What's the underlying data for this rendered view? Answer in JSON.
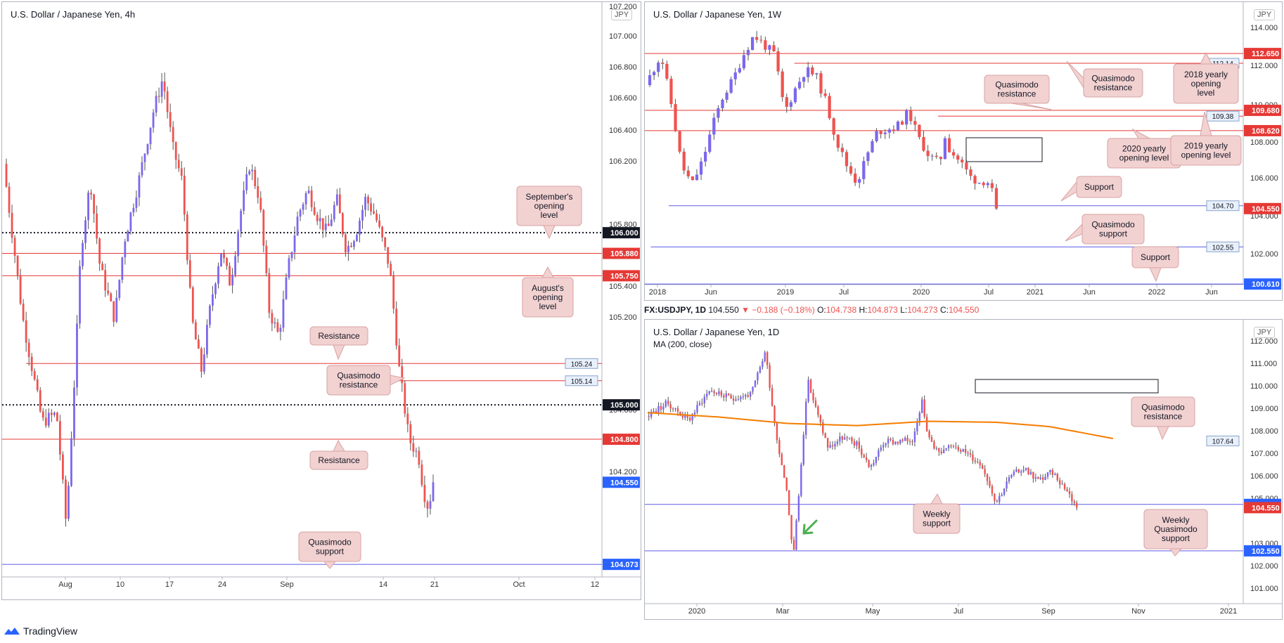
{
  "brand": {
    "name": "TradingView"
  },
  "currency_badge": "JPY",
  "symbol_header": {
    "symbol": "FX:USDJPY, 1D",
    "last": "104.550",
    "change": "▼ −0.188 (−0.18%)",
    "o_label": "O:",
    "o": "104.738",
    "h_label": "H:",
    "h": "104.873",
    "l_label": "L:",
    "l": "104.273",
    "c_label": "C:",
    "c": "104.550"
  },
  "colors": {
    "bull": "#7b68ee",
    "bear": "#ef5350",
    "red_level": "#e53935",
    "blue_level": "#5c5ce6",
    "ma": "#f57c00",
    "callout_bg": "#f2d1d1",
    "callout_border": "#d9a3a3"
  },
  "chart_data": [
    {
      "id": "h4",
      "type": "candlestick",
      "title": "U.S. Dollar / Japanese Yen, 4h",
      "x_ticks": [
        "Aug",
        "10",
        "17",
        "24",
        "Sep",
        "14",
        "21",
        "Oct",
        "12"
      ],
      "y_ticks": [
        "107.200",
        "107.000",
        "106.800",
        "106.600",
        "106.400",
        "106.200",
        "105.800",
        "105.600",
        "105.400",
        "105.200",
        "104.600",
        "104.400",
        "104.200"
      ],
      "ylim": [
        104.0,
        107.25
      ],
      "price_path": [
        [
          0,
          106.4
        ],
        [
          4,
          105.5
        ],
        [
          8,
          104.9
        ],
        [
          11,
          104.95
        ],
        [
          13,
          104.3
        ],
        [
          15,
          105.3
        ],
        [
          16,
          105.9
        ],
        [
          18,
          106.3
        ],
        [
          20,
          105.8
        ],
        [
          23,
          105.5
        ],
        [
          25,
          105.95
        ],
        [
          28,
          106.3
        ],
        [
          31,
          106.7
        ],
        [
          33,
          106.9
        ],
        [
          35,
          106.5
        ],
        [
          37,
          106.3
        ],
        [
          39,
          105.5
        ],
        [
          41,
          105.2
        ],
        [
          43,
          105.6
        ],
        [
          45,
          105.9
        ],
        [
          47,
          105.7
        ],
        [
          49,
          106.1
        ],
        [
          51,
          106.4
        ],
        [
          53,
          106.2
        ],
        [
          55,
          105.55
        ],
        [
          57,
          105.4
        ],
        [
          59,
          105.8
        ],
        [
          61,
          106.1
        ],
        [
          63,
          106.25
        ],
        [
          65,
          106.1
        ],
        [
          67,
          106.0
        ],
        [
          69,
          106.2
        ],
        [
          71,
          105.9
        ],
        [
          73,
          106.0
        ],
        [
          75,
          106.2
        ],
        [
          77,
          106.1
        ],
        [
          80,
          105.8
        ],
        [
          82,
          105.2
        ],
        [
          84,
          104.8
        ],
        [
          86,
          104.7
        ],
        [
          87,
          104.5
        ],
        [
          88,
          104.4
        ],
        [
          89,
          104.55
        ]
      ],
      "last_price": 104.55,
      "levels": [
        {
          "value": 106.0,
          "label": "106.000",
          "style": "dotted",
          "color": "#131722",
          "tag_bg": "#131722"
        },
        {
          "value": 105.88,
          "label": "105.880",
          "style": "solid",
          "color": "#e53935",
          "tag_bg": "#e53935"
        },
        {
          "value": 105.75,
          "label": "105.750",
          "style": "solid",
          "color": "#e53935",
          "tag_bg": "#e53935"
        },
        {
          "value": 105.24,
          "label": "105.24",
          "style": "solid",
          "color": "#e53935",
          "tag_bg": "#e8f0fb",
          "from": 0.04,
          "small": true
        },
        {
          "value": 105.14,
          "label": "105.14",
          "style": "solid",
          "color": "#e53935",
          "tag_bg": "#e8f0fb",
          "from": 0.66,
          "small": true
        },
        {
          "value": 105.0,
          "label": "105.000",
          "style": "dotted",
          "color": "#131722",
          "tag_bg": "#131722"
        },
        {
          "value": 104.8,
          "label": "104.800",
          "style": "solid",
          "color": "#e53935",
          "tag_bg": "#e53935"
        },
        {
          "value": 104.55,
          "label": "104.550",
          "style": "none",
          "color": "#2962ff",
          "tag_bg": "#2962ff"
        },
        {
          "value": 104.073,
          "label": "104.073",
          "style": "solid",
          "color": "#5c5ce6",
          "tag_bg": "#2962ff"
        }
      ],
      "annotations": [
        "September's opening level",
        "August's opening level",
        "Resistance",
        "Quasimodo resistance",
        "Resistance",
        "Quasimodo support"
      ]
    },
    {
      "id": "w1",
      "type": "candlestick",
      "title": "U.S. Dollar / Japanese Yen, 1W",
      "x_ticks": [
        "2018",
        "Jun",
        "2019",
        "Jul",
        "2020",
        "Jul",
        "2021",
        "Jun",
        "2022",
        "Jun"
      ],
      "y_ticks": [
        "114.000",
        "112.000",
        "110.000",
        "108.000",
        "106.000",
        "104.000",
        "102.000"
      ],
      "ylim": [
        100.8,
        114.6
      ],
      "price_path": [
        [
          0,
          111.0
        ],
        [
          3,
          112.6
        ],
        [
          5,
          110.0
        ],
        [
          7,
          106.8
        ],
        [
          9,
          105.8
        ],
        [
          11,
          107.0
        ],
        [
          13,
          108.9
        ],
        [
          15,
          110.4
        ],
        [
          17,
          111.3
        ],
        [
          19,
          112.6
        ],
        [
          21,
          113.6
        ],
        [
          23,
          113.1
        ],
        [
          25,
          112.6
        ],
        [
          27,
          109.6
        ],
        [
          29,
          110.8
        ],
        [
          31,
          111.8
        ],
        [
          33,
          111.5
        ],
        [
          35,
          110.1
        ],
        [
          37,
          108.1
        ],
        [
          39,
          106.8
        ],
        [
          41,
          105.9
        ],
        [
          43,
          107.4
        ],
        [
          45,
          108.6
        ],
        [
          47,
          108.7
        ],
        [
          49,
          108.9
        ],
        [
          51,
          109.6
        ],
        [
          53,
          108.2
        ],
        [
          55,
          107.3
        ],
        [
          57,
          106.9
        ],
        [
          58,
          108.4
        ],
        [
          59,
          107.6
        ],
        [
          61,
          107.0
        ],
        [
          63,
          106.2
        ],
        [
          65,
          105.9
        ],
        [
          66,
          106.1
        ],
        [
          67,
          105.6
        ],
        [
          68,
          104.6
        ]
      ],
      "last_price": 104.55,
      "levels": [
        {
          "value": 112.65,
          "label": "112.650",
          "style": "solid",
          "color": "#e53935",
          "tag_bg": "#e53935"
        },
        {
          "value": 112.14,
          "label": "112.14",
          "style": "solid",
          "color": "#e53935",
          "tag_bg": "#e8f0fb",
          "from": 0.25,
          "small": true
        },
        {
          "value": 109.68,
          "label": "109.680",
          "style": "solid",
          "color": "#e53935",
          "tag_bg": "#e53935"
        },
        {
          "value": 109.38,
          "label": "109.38",
          "style": "solid",
          "color": "#e53935",
          "tag_bg": "#e8f0fb",
          "from": 0.49,
          "to": 0.0,
          "small": true
        },
        {
          "value": 108.62,
          "label": "108.620",
          "style": "solid",
          "color": "#e53935",
          "tag_bg": "#e53935"
        },
        {
          "value": 104.7,
          "label": "104.70",
          "style": "solid",
          "color": "#5c5ce6",
          "tag_bg": "#e8f0fb",
          "from": 0.04,
          "small": true
        },
        {
          "value": 104.55,
          "label": "104.550",
          "style": "none",
          "color": "#e53935",
          "tag_bg": "#e53935"
        },
        {
          "value": 102.55,
          "label": "102.55",
          "style": "solid",
          "color": "#5c5ce6",
          "tag_bg": "#e8f0fb",
          "from": 0.01,
          "small": true
        },
        {
          "value": 100.61,
          "label": "100.610",
          "style": "solid",
          "color": "#5c5ce6",
          "tag_bg": "#2962ff"
        }
      ],
      "annotations": [
        "Quasimodo resistance",
        "2018 yearly opening level",
        "Quasimodo resistance",
        "2020 yearly opening level",
        "2019 yearly opening level",
        "Support",
        "Quasimodo support",
        "Support"
      ]
    },
    {
      "id": "d1",
      "type": "candlestick",
      "title": "U.S. Dollar / Japanese Yen, 1D",
      "indicator": "MA (200, close)",
      "x_ticks": [
        "2020",
        "Mar",
        "May",
        "Jul",
        "Sep",
        "Nov",
        "2021"
      ],
      "y_ticks": [
        "112.000",
        "111.000",
        "110.000",
        "109.000",
        "108.000",
        "107.000",
        "106.000",
        "105.000",
        "103.000",
        "102.000",
        "101.000"
      ],
      "ylim": [
        100.3,
        112.6
      ],
      "price_path": [
        [
          0,
          108.8
        ],
        [
          6,
          109.4
        ],
        [
          12,
          108.6
        ],
        [
          18,
          110.0
        ],
        [
          24,
          109.6
        ],
        [
          30,
          109.8
        ],
        [
          34,
          111.8
        ],
        [
          37,
          108.0
        ],
        [
          40,
          105.5
        ],
        [
          42,
          102.3
        ],
        [
          44,
          106.0
        ],
        [
          46,
          110.5
        ],
        [
          49,
          108.8
        ],
        [
          52,
          107.3
        ],
        [
          56,
          107.8
        ],
        [
          60,
          107.5
        ],
        [
          64,
          106.4
        ],
        [
          68,
          107.6
        ],
        [
          72,
          107.6
        ],
        [
          76,
          107.7
        ],
        [
          79,
          109.7
        ],
        [
          80,
          108.0
        ],
        [
          84,
          107.0
        ],
        [
          88,
          107.5
        ],
        [
          92,
          107.0
        ],
        [
          96,
          106.5
        ],
        [
          100,
          104.8
        ],
        [
          104,
          106.0
        ],
        [
          108,
          106.4
        ],
        [
          112,
          105.8
        ],
        [
          116,
          106.2
        ],
        [
          120,
          105.4
        ],
        [
          123,
          104.55
        ]
      ],
      "ma_path": [
        [
          0,
          108.95
        ],
        [
          20,
          108.75
        ],
        [
          40,
          108.45
        ],
        [
          60,
          108.35
        ],
        [
          80,
          108.55
        ],
        [
          100,
          108.5
        ],
        [
          115,
          108.3
        ],
        [
          133,
          107.75
        ]
      ],
      "last_price": 104.55,
      "levels": [
        {
          "value": 107.64,
          "label": "107.64",
          "style": "none",
          "color": "#e53935",
          "tag_bg": "#e8f0fb",
          "small": true
        },
        {
          "value": 104.7,
          "label": "104.700",
          "style": "solid",
          "color": "#5c5ce6",
          "tag_bg": "#2962ff"
        },
        {
          "value": 104.55,
          "label": "104.550",
          "style": "none",
          "color": "#e53935",
          "tag_bg": "#e53935"
        },
        {
          "value": 102.55,
          "label": "102.550",
          "style": "solid",
          "color": "#5c5ce6",
          "tag_bg": "#2962ff"
        }
      ],
      "annotations": [
        "Quasimodo resistance",
        "Weekly support",
        "Weekly Quasimodo support"
      ]
    }
  ]
}
